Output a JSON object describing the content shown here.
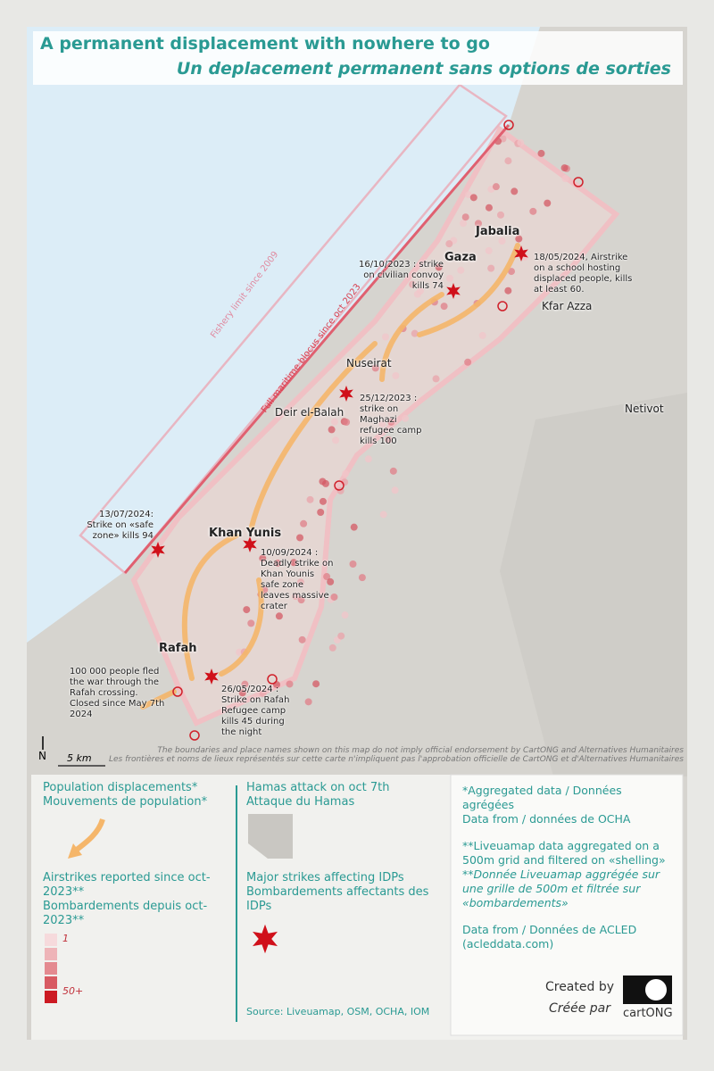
{
  "header": {
    "title": "A permanent displacement with nowhere to go",
    "subtitle": "Un deplacement permanent sans options de sorties"
  },
  "map": {
    "places": [
      "Jabalia",
      "Gaza",
      "Kfar Azza",
      "Nuseirat",
      "Deir el-Balah",
      "Netivot",
      "Khan Yunis",
      "Rafah"
    ],
    "annotations": [
      "16/10/2023 : strike on civilian convoy kills 74",
      "18/05/2024, Airstrike on a school hosting displaced people, kills at least 60.",
      "25/12/2023 : strike on Maghazi refugee camp kills 100",
      "13/07/2024: Strike on «safe zone» kills 94",
      "10/09/2024 : Deadly strike on Khan Younis safe zone leaves massive crater",
      "26/05/2024 : Strike on Rafah Refugee camp kills 45 during the night",
      "100 000 people fled the war through the Rafah crossing. Closed since May 7th 2024"
    ],
    "boundaries": [
      "Fishery limit since 2009",
      "Full maritime blocus since oct 2023"
    ],
    "scale": "5 km",
    "north": "N",
    "disclaimer": [
      "The boundaries and place names shown on this map do not imply official endorsement by CartONG and Alternatives Humanitaires",
      "Les frontières et noms de lieux représentés sur cette carte n'impliquent pas l'approbation officielle de CartONG et d'Alternatives Humanitaires"
    ]
  },
  "legend": {
    "displacements": [
      "Population displacements*",
      "Mouvements de population*"
    ],
    "airstrikes": [
      "Airstrikes reported since oct-2023**",
      "Bombardements depuis oct-2023**"
    ],
    "scale_labels": [
      "1",
      "50+"
    ],
    "hamas": [
      "Hamas attack on oct 7th",
      "Attaque du Hamas"
    ],
    "major_strikes": [
      "Major strikes affecting IDPs",
      "Bombardements affectants des IDPs"
    ],
    "source": "Source: Liveuamap, OSM, OCHA, IOM"
  },
  "notes": {
    "aggregated": "*Aggregated data / Données agrégées",
    "ocha": "Data from / données de OCHA",
    "liveuamap_en": "**Liveuamap data aggregated on a 500m grid and filtered on «shelling»",
    "liveuamap_fr": "**Donnée Liveuamap aggrégée sur une grille de 500m et filtrée sur «bombardements»",
    "acled": "Data from / Données de ACLED (acleddata.com)",
    "created_by": "Created by",
    "creee_par": "Créée par",
    "logo": "cartONG"
  }
}
